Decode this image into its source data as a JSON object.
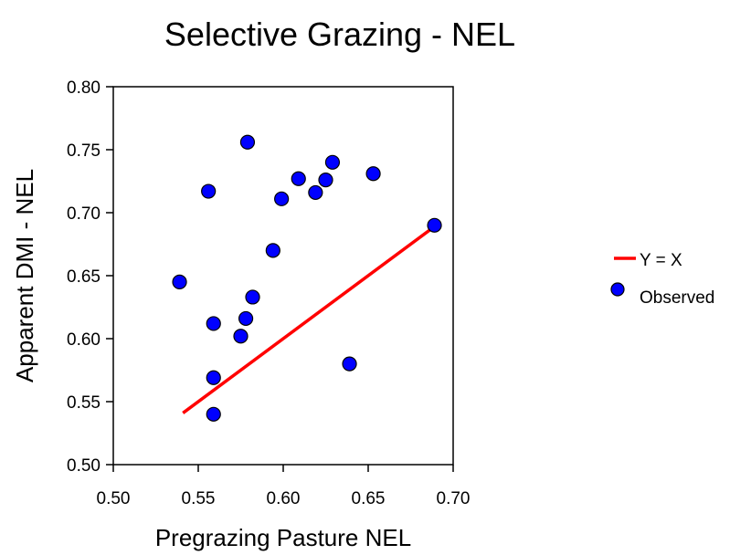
{
  "chart_data": {
    "type": "scatter",
    "title": "Selective Grazing - NEL",
    "xlabel": "Pregrazing Pasture NEL",
    "ylabel": "Apparent DMI - NEL",
    "xlim": [
      0.5,
      0.7
    ],
    "ylim": [
      0.5,
      0.8
    ],
    "x_ticks": [
      "0.50",
      "0.55",
      "0.60",
      "0.65",
      "0.70"
    ],
    "y_ticks": [
      "0.50",
      "0.55",
      "0.60",
      "0.65",
      "0.70",
      "0.75",
      "0.80"
    ],
    "grid": false,
    "legend_position": "right",
    "series": [
      {
        "name": "Y = X",
        "kind": "line",
        "color": "#ff0000",
        "x": [
          0.541,
          0.689
        ],
        "y": [
          0.541,
          0.689
        ]
      },
      {
        "name": "Observed",
        "kind": "scatter",
        "color": "#0000ff",
        "x": [
          0.539,
          0.556,
          0.559,
          0.559,
          0.559,
          0.575,
          0.578,
          0.579,
          0.582,
          0.594,
          0.599,
          0.609,
          0.619,
          0.625,
          0.629,
          0.639,
          0.653,
          0.689
        ],
        "y": [
          0.645,
          0.717,
          0.612,
          0.569,
          0.54,
          0.602,
          0.616,
          0.756,
          0.633,
          0.67,
          0.711,
          0.727,
          0.716,
          0.726,
          0.74,
          0.58,
          0.731,
          0.69
        ]
      }
    ]
  }
}
